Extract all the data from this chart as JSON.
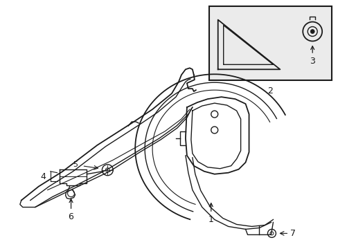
{
  "bg_color": "#ffffff",
  "line_color": "#1a1a1a",
  "inset_bg": "#ebebeb",
  "lw": 1.0
}
